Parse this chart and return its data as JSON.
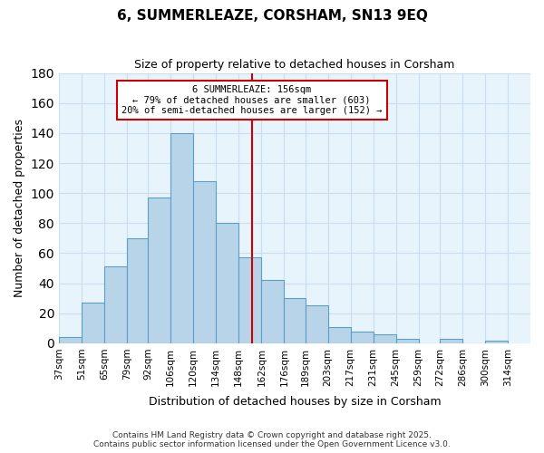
{
  "title": "6, SUMMERLEAZE, CORSHAM, SN13 9EQ",
  "subtitle": "Size of property relative to detached houses in Corsham",
  "xlabel": "Distribution of detached houses by size in Corsham",
  "ylabel": "Number of detached properties",
  "categories": [
    "37sqm",
    "51sqm",
    "65sqm",
    "79sqm",
    "92sqm",
    "106sqm",
    "120sqm",
    "134sqm",
    "148sqm",
    "162sqm",
    "176sqm",
    "189sqm",
    "203sqm",
    "217sqm",
    "231sqm",
    "245sqm",
    "259sqm",
    "272sqm",
    "286sqm",
    "300sqm",
    "314sqm"
  ],
  "values": [
    4,
    27,
    51,
    70,
    97,
    140,
    108,
    80,
    57,
    42,
    30,
    25,
    11,
    8,
    6,
    3,
    0,
    3,
    0,
    2
  ],
  "bar_color": "#b8d4e8",
  "bar_edge_color": "#5a9fc8",
  "background_color": "#ffffff",
  "grid_color": "#c8dff0",
  "ylim": [
    0,
    180
  ],
  "yticks": [
    0,
    20,
    40,
    60,
    80,
    100,
    120,
    140,
    160,
    180
  ],
  "vline_x": 156,
  "vline_color": "#cc0000",
  "annotation_title": "6 SUMMERLEAZE: 156sqm",
  "annotation_line1": "← 79% of detached houses are smaller (603)",
  "annotation_line2": "20% of semi-detached houses are larger (152) →",
  "annotation_box_color": "#ffffff",
  "annotation_box_edge": "#cc0000",
  "footer_line1": "Contains HM Land Registry data © Crown copyright and database right 2025.",
  "footer_line2": "Contains public sector information licensed under the Open Government Licence v3.0.",
  "bin_edges": [
    37,
    51,
    65,
    79,
    92,
    106,
    120,
    134,
    148,
    162,
    176,
    189,
    203,
    217,
    231,
    245,
    259,
    272,
    286,
    300,
    314
  ]
}
